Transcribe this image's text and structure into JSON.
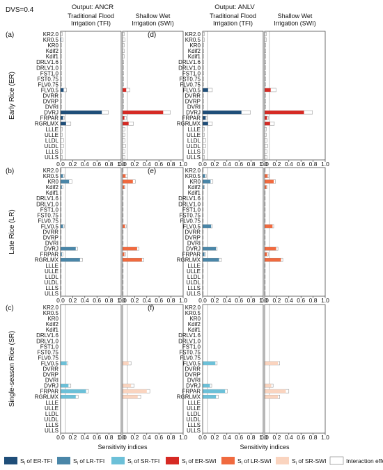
{
  "dvs_label": "DVS=0.4",
  "outputs": [
    {
      "label": "Output: ANCR",
      "columns": [
        "Traditional Flood Irrigation (TFI)",
        "Shallow Wet Irrigation (SWI)"
      ]
    },
    {
      "label": "Output: ANLV",
      "columns": [
        "Traditional Flood Irrigation (TFI)",
        "Shallow Wet Irrigation (SWI)"
      ]
    }
  ],
  "rows": [
    {
      "panels": [
        "(a)",
        "(d)"
      ],
      "ylabel": "Early Rice (ER)"
    },
    {
      "panels": [
        "(b)",
        "(e)"
      ],
      "ylabel": "Late Rice (LR)"
    },
    {
      "panels": [
        "(c)",
        "(f)"
      ],
      "ylabel": "Single-season Rice (SR)"
    }
  ],
  "x_ticks": [
    "0.0",
    "0.2",
    "0.4",
    "0.6",
    "0.8",
    "1.0"
  ],
  "x_axis_label": "Sensitivity indices",
  "colors": {
    "ER-TFI": "#1f4e79",
    "LR-TFI": "#4a86a8",
    "SR-TFI": "#6cc0d8",
    "ER-SWI": "#d62a24",
    "LR-SWI": "#f06a3f",
    "SR-SWI": "#fad4bf",
    "interaction": "#ffffff"
  },
  "legend": [
    {
      "key": "ER-TFI",
      "prefix": "S",
      "sub": "i",
      "text": " of ER-TFI"
    },
    {
      "key": "LR-TFI",
      "prefix": "S",
      "sub": "i",
      "text": " of LR-TFI"
    },
    {
      "key": "SR-TFI",
      "prefix": "S",
      "sub": "i",
      "text": " of SR-TFI"
    },
    {
      "key": "ER-SWI",
      "prefix": "S",
      "sub": "i",
      "text": " of ER-SWI"
    },
    {
      "key": "LR-SWI",
      "prefix": "S",
      "sub": "i",
      "text": " of LR-SWI"
    },
    {
      "key": "SR-SWI",
      "prefix": "S",
      "sub": "i",
      "text": " of SR-SWI"
    },
    {
      "key": "interaction",
      "prefix": "",
      "sub": "",
      "text": "Interaction effect"
    }
  ],
  "chart_data": {
    "type": "bar",
    "orientation": "horizontal",
    "stacked": true,
    "xlim": [
      0,
      1
    ],
    "categories": [
      "KR2.0",
      "KR0.5",
      "KR0",
      "Kdif2",
      "Kdif1",
      "DRLV1.6",
      "DRLV1.0",
      "FST1.0",
      "FST0.75",
      "FLV0.75",
      "FLV0.5",
      "DVRR",
      "DVRP",
      "DVRI",
      "DVRJ",
      "FRPAR",
      "RGRLMX",
      "LLLE",
      "ULLE",
      "LLDL",
      "ULDL",
      "LLLS",
      "ULLS"
    ],
    "panels": [
      {
        "panel": "(a)",
        "output": "ANCR",
        "season": "ER",
        "series": [
          {
            "key": "ER-TFI",
            "si": [
              0,
              0.01,
              0,
              0,
              0,
              0,
              0,
              0,
              0,
              0,
              0.05,
              0,
              0,
              0,
              0.68,
              0.04,
              0.09,
              0,
              0,
              0,
              0,
              0,
              0
            ],
            "total": [
              0.03,
              0.04,
              0.02,
              0.02,
              0.02,
              0.02,
              0.02,
              0.02,
              0.02,
              0.02,
              0.1,
              0.02,
              0.02,
              0.02,
              0.79,
              0.06,
              0.17,
              0.03,
              0.03,
              0.05,
              0.05,
              0.03,
              0.03
            ]
          },
          {
            "key": "ER-SWI",
            "si": [
              0,
              0,
              0,
              0,
              0,
              0,
              0,
              0,
              0,
              0,
              0.06,
              0,
              0,
              0,
              0.67,
              0.03,
              0.1,
              0,
              0,
              0,
              0,
              0,
              0
            ],
            "total": [
              0.03,
              0.04,
              0.03,
              0.03,
              0.03,
              0.02,
              0.02,
              0.02,
              0.02,
              0.02,
              0.12,
              0.02,
              0.02,
              0.02,
              0.79,
              0.06,
              0.18,
              0.04,
              0.04,
              0.04,
              0.05,
              0.04,
              0.04
            ]
          }
        ]
      },
      {
        "panel": "(d)",
        "output": "ANLV",
        "season": "ER",
        "series": [
          {
            "key": "ER-TFI",
            "si": [
              0,
              0,
              0,
              0,
              0,
              0,
              0,
              0,
              0,
              0,
              0.09,
              0,
              0,
              0,
              0.64,
              0.05,
              0.09,
              0,
              0,
              0,
              0,
              0,
              0
            ],
            "total": [
              0.03,
              0.03,
              0.02,
              0.02,
              0.02,
              0.02,
              0.02,
              0.02,
              0.02,
              0.02,
              0.16,
              0.02,
              0.02,
              0.02,
              0.79,
              0.07,
              0.16,
              0.03,
              0.03,
              0.05,
              0.05,
              0.03,
              0.03
            ]
          },
          {
            "key": "ER-SWI",
            "si": [
              0,
              0,
              0,
              0,
              0,
              0,
              0,
              0,
              0,
              0,
              0.1,
              0,
              0,
              0,
              0.65,
              0.04,
              0.09,
              0,
              0,
              0,
              0,
              0,
              0
            ],
            "total": [
              0.03,
              0.03,
              0.02,
              0.02,
              0.02,
              0.02,
              0.02,
              0.02,
              0.02,
              0.02,
              0.19,
              0.02,
              0.02,
              0.02,
              0.79,
              0.06,
              0.16,
              0.03,
              0.03,
              0.04,
              0.05,
              0.04,
              0.04
            ]
          }
        ]
      },
      {
        "panel": "(b)",
        "output": "ANCR",
        "season": "LR",
        "series": [
          {
            "key": "LR-TFI",
            "si": [
              0,
              0.04,
              0.14,
              0.02,
              0,
              0,
              0,
              0,
              0,
              0,
              0.04,
              0,
              0,
              0,
              0.25,
              0.02,
              0.32,
              0,
              0,
              0,
              0,
              0,
              0
            ],
            "total": [
              0.01,
              0.06,
              0.19,
              0.04,
              0.01,
              0.01,
              0.01,
              0.01,
              0.01,
              0.01,
              0.06,
              0.01,
              0.01,
              0.01,
              0.28,
              0.04,
              0.36,
              0.01,
              0.01,
              0.01,
              0.01,
              0.01,
              0.01
            ]
          },
          {
            "key": "LR-SWI",
            "si": [
              0,
              0.05,
              0.17,
              0.03,
              0,
              0,
              0,
              0,
              0,
              0,
              0.04,
              0,
              0,
              0,
              0.24,
              0.03,
              0.32,
              0,
              0,
              0,
              0,
              0,
              0
            ],
            "total": [
              0.01,
              0.08,
              0.21,
              0.04,
              0.01,
              0.01,
              0.01,
              0.01,
              0.01,
              0.01,
              0.06,
              0.01,
              0.01,
              0.01,
              0.27,
              0.05,
              0.35,
              0.01,
              0.01,
              0.01,
              0.01,
              0.01,
              0.01
            ]
          }
        ]
      },
      {
        "panel": "(e)",
        "output": "ANLV",
        "season": "LR",
        "series": [
          {
            "key": "LR-TFI",
            "si": [
              0,
              0.04,
              0.13,
              0.02,
              0,
              0,
              0,
              0,
              0,
              0,
              0.14,
              0,
              0,
              0,
              0.22,
              0.03,
              0.27,
              0,
              0,
              0,
              0,
              0,
              0
            ],
            "total": [
              0.01,
              0.06,
              0.17,
              0.03,
              0.01,
              0.01,
              0.01,
              0.01,
              0.01,
              0.01,
              0.16,
              0.01,
              0.01,
              0.01,
              0.24,
              0.05,
              0.31,
              0.01,
              0.01,
              0.01,
              0.01,
              0.01,
              0.01
            ]
          },
          {
            "key": "LR-SWI",
            "si": [
              0,
              0.05,
              0.15,
              0.03,
              0,
              0,
              0,
              0,
              0,
              0,
              0.13,
              0,
              0,
              0,
              0.19,
              0.04,
              0.27,
              0,
              0,
              0,
              0,
              0,
              0
            ],
            "total": [
              0.01,
              0.07,
              0.18,
              0.04,
              0.01,
              0.01,
              0.01,
              0.01,
              0.01,
              0.01,
              0.15,
              0.01,
              0.01,
              0.01,
              0.22,
              0.06,
              0.3,
              0.01,
              0.01,
              0.01,
              0.01,
              0.01,
              0.01
            ]
          }
        ]
      },
      {
        "panel": "(c)",
        "output": "ANCR",
        "season": "SR",
        "series": [
          {
            "key": "SR-TFI",
            "si": [
              0,
              0,
              0,
              0,
              0,
              0,
              0,
              0,
              0,
              0,
              0.1,
              0,
              0,
              0,
              0.13,
              0.42,
              0.25,
              0,
              0,
              0,
              0,
              0,
              0
            ],
            "total": [
              0,
              0,
              0,
              0,
              0,
              0,
              0,
              0,
              0,
              0,
              0.12,
              0,
              0,
              0,
              0.17,
              0.46,
              0.29,
              0,
              0,
              0,
              0,
              0,
              0
            ]
          },
          {
            "key": "SR-SWI",
            "si": [
              0,
              0,
              0,
              0,
              0,
              0,
              0,
              0,
              0,
              0,
              0.1,
              0,
              0,
              0,
              0.14,
              0.4,
              0.25,
              0,
              0,
              0,
              0,
              0,
              0
            ],
            "total": [
              0,
              0,
              0,
              0,
              0,
              0,
              0,
              0,
              0,
              0,
              0.14,
              0,
              0,
              0,
              0.19,
              0.45,
              0.3,
              0,
              0,
              0,
              0,
              0,
              0
            ]
          }
        ]
      },
      {
        "panel": "(f)",
        "output": "ANLV",
        "season": "SR",
        "series": [
          {
            "key": "SR-TFI",
            "si": [
              0,
              0,
              0,
              0,
              0,
              0,
              0,
              0,
              0,
              0,
              0.21,
              0,
              0,
              0,
              0.12,
              0.37,
              0.22,
              0,
              0,
              0,
              0,
              0,
              0
            ],
            "total": [
              0,
              0,
              0,
              0,
              0,
              0,
              0,
              0,
              0,
              0,
              0.24,
              0,
              0,
              0,
              0.15,
              0.41,
              0.26,
              0,
              0,
              0,
              0,
              0,
              0
            ]
          },
          {
            "key": "SR-SWI",
            "si": [
              0,
              0,
              0,
              0,
              0,
              0,
              0,
              0,
              0,
              0,
              0.22,
              0,
              0,
              0,
              0.11,
              0.35,
              0.22,
              0,
              0,
              0,
              0,
              0,
              0
            ],
            "total": [
              0,
              0,
              0,
              0,
              0,
              0,
              0,
              0,
              0,
              0,
              0.25,
              0,
              0,
              0,
              0.14,
              0.4,
              0.25,
              0,
              0,
              0,
              0,
              0,
              0
            ]
          }
        ]
      }
    ]
  }
}
